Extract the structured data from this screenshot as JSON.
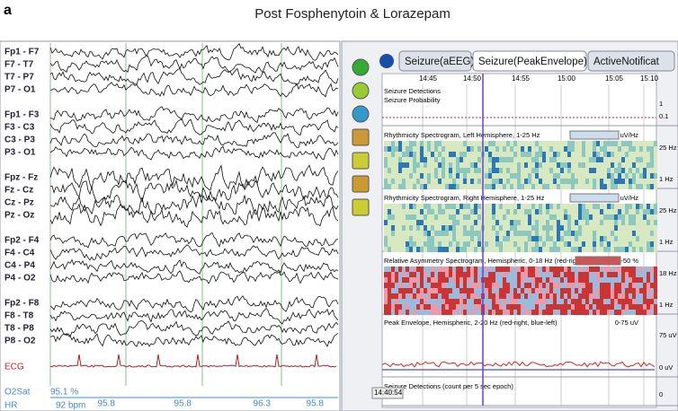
{
  "panel_label": "a",
  "title": "Post Fosphenytoin & Lorazepam",
  "eeg": {
    "channels": [
      [
        "Fp1 - F7",
        "F7 - T7",
        "T7 - P7",
        "P7 - O1"
      ],
      [
        "Fp1 - F3",
        "F3 - C3",
        "C3 - P3",
        "P3 - O1"
      ],
      [
        "Fpz - Fz",
        "Fz - Cz",
        "Cz - Pz",
        "Pz - Oz"
      ],
      [
        "Fp2 - F4",
        "F4 - C4",
        "C4 - P4",
        "P4 - O2"
      ],
      [
        "Fp2 - F8",
        "F8 - T8",
        "T8 - P8",
        "P8 - O2"
      ]
    ],
    "ecg_label": "ECG",
    "o2sat_label": "O2Sat",
    "o2sat_value": "95.1 %",
    "o2sat_trend": [
      "95.8",
      "95.8",
      "96.3",
      "95.8"
    ],
    "hr_label": "HR",
    "hr_value": "92 bpm"
  },
  "trend": {
    "tabs": [
      "Seizure(aEEG)",
      "Seizure(PeakEnvelope)",
      "ActiveNotificat"
    ],
    "times": [
      "14:45",
      "14:50",
      "14:55",
      "15:00",
      "15:05",
      "15:10"
    ],
    "panels": [
      {
        "title": "Seizure Detections",
        "subtitle": "Seizure Probability",
        "scale": "",
        "axis": [
          "1",
          "0.1"
        ]
      },
      {
        "title": "Rhythmicity Spectrogram, Left Hemisphere, 1-25 Hz",
        "subtitle": "",
        "scale": "0-4 uV/Hz",
        "axis": [
          "25 Hz",
          "1 Hz"
        ]
      },
      {
        "title": "Rhythmicity Spectrogram, Right Hemisphere, 1-25 Hz",
        "subtitle": "",
        "scale": "0-4 uV/Hz",
        "axis": [
          "25 Hz",
          "1 Hz"
        ]
      },
      {
        "title": "Relative Asymmetry Spectrogram, Hemispheric, 0-18 Hz (red-rig",
        "subtitle": "",
        "scale": "50-50 %",
        "axis": [
          "18 Hz",
          "1 Hz"
        ]
      },
      {
        "title": "Peak Envelope, Hemispheric, 2-20 Hz (red-right, blue-left)",
        "subtitle": "",
        "scale": "0-75 uV",
        "axis": [
          "75 uV",
          "0 uV"
        ]
      },
      {
        "title": "Seizure Detections (count per 5 sec epoch)",
        "subtitle": "",
        "scale": "",
        "axis": [
          "0"
        ]
      }
    ],
    "cursor_time": "14:40:54"
  }
}
